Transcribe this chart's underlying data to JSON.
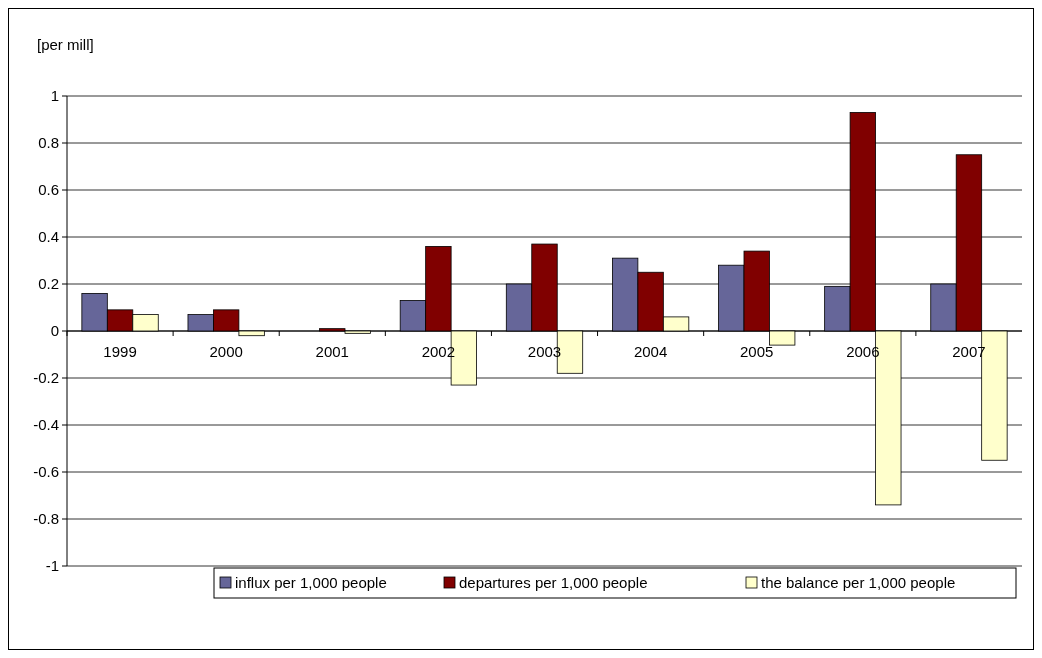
{
  "chart_data": {
    "type": "bar",
    "ylabel": "[per mill]",
    "categories": [
      "1999",
      "2000",
      "2001",
      "2002",
      "2003",
      "2004",
      "2005",
      "2006",
      "2007"
    ],
    "series": [
      {
        "name": "influx per 1,000 people",
        "color": "#666699",
        "values": [
          0.16,
          0.07,
          0,
          0.13,
          0.2,
          0.31,
          0.28,
          0.19,
          0.2
        ]
      },
      {
        "name": "departures per 1,000 people",
        "color": "#800000",
        "values": [
          0.09,
          0.09,
          0.01,
          0.36,
          0.37,
          0.25,
          0.34,
          0.93,
          0.75
        ]
      },
      {
        "name": "the balance per 1,000 people",
        "color": "#ffffcc",
        "values": [
          0.07,
          -0.02,
          -0.01,
          -0.23,
          -0.18,
          0.06,
          -0.06,
          -0.74,
          -0.55
        ]
      }
    ],
    "ylim": [
      -1,
      1
    ],
    "yticks": [
      -1,
      -0.8,
      -0.6,
      -0.4,
      -0.2,
      0,
      0.2,
      0.4,
      0.6,
      0.8,
      1
    ],
    "grid": "y",
    "legend": "bottom"
  }
}
